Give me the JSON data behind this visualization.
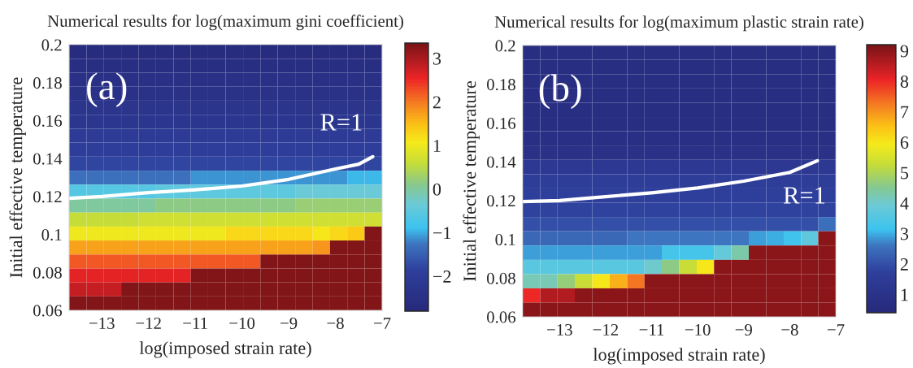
{
  "chart_data": [
    {
      "type": "heatmap",
      "title": "Numerical results for log(maximum gini coefficient)",
      "xlabel": "log(imposed strain rate)",
      "ylabel": "Initial effective temperature",
      "x": [
        -13.51,
        -13.14,
        -12.77,
        -12.4,
        -12.03,
        -11.65,
        -11.28,
        -10.91,
        -10.54,
        -10.16,
        -9.79,
        -9.42,
        -9.05,
        -8.67,
        -8.3,
        -7.93,
        -7.56,
        -7.19
      ],
      "y": [
        0.1963,
        0.1889,
        0.1815,
        0.1742,
        0.1668,
        0.1594,
        0.1521,
        0.1447,
        0.1373,
        0.1299,
        0.1226,
        0.1152,
        0.1078,
        0.1005,
        0.0931,
        0.0857,
        0.0784,
        0.071,
        0.0637
      ],
      "cells": [
        [
          -2.65,
          -2.65,
          -2.65,
          -2.65,
          -2.65,
          -2.65,
          -2.65,
          -2.65,
          -2.65,
          -2.65,
          -2.65,
          -2.65,
          -2.65,
          -2.65,
          -2.65,
          -2.65,
          -2.65,
          -2.65
        ],
        [
          -2.6,
          -2.6,
          -2.6,
          -2.6,
          -2.6,
          -2.6,
          -2.6,
          -2.6,
          -2.6,
          -2.6,
          -2.6,
          -2.6,
          -2.6,
          -2.6,
          -2.6,
          -2.6,
          -2.6,
          -2.6
        ],
        [
          -2.5,
          -2.5,
          -2.5,
          -2.5,
          -2.5,
          -2.5,
          -2.5,
          -2.5,
          -2.5,
          -2.5,
          -2.5,
          -2.5,
          -2.5,
          -2.5,
          -2.5,
          -2.5,
          -2.5,
          -2.5
        ],
        [
          -2.4,
          -2.4,
          -2.4,
          -2.4,
          -2.4,
          -2.4,
          -2.4,
          -2.4,
          -2.4,
          -2.4,
          -2.4,
          -2.4,
          -2.4,
          -2.4,
          -2.4,
          -2.4,
          -2.4,
          -2.4
        ],
        [
          -2.3,
          -2.3,
          -2.3,
          -2.3,
          -2.3,
          -2.3,
          -2.3,
          -2.3,
          -2.3,
          -2.3,
          -2.3,
          -2.3,
          -2.3,
          -2.3,
          -2.3,
          -2.3,
          -2.3,
          -2.3
        ],
        [
          -2.2,
          -2.2,
          -2.2,
          -2.2,
          -2.2,
          -2.2,
          -2.2,
          -2.2,
          -2.2,
          -2.2,
          -2.2,
          -2.2,
          -2.2,
          -2.2,
          -2.2,
          -2.2,
          -2.2,
          -2.2
        ],
        [
          -2.05,
          -2.05,
          -2.05,
          -2.05,
          -2.05,
          -2.05,
          -2.05,
          -2.05,
          -2.05,
          -2.05,
          -2.05,
          -2.05,
          -2.05,
          -2.05,
          -2.05,
          -2.05,
          -2.05,
          -2.05
        ],
        [
          -1.95,
          -1.95,
          -1.95,
          -1.95,
          -1.95,
          -1.95,
          -1.95,
          -1.95,
          -1.95,
          -1.95,
          -1.95,
          -1.95,
          -1.95,
          -1.95,
          -1.95,
          -1.95,
          -1.95,
          -1.95
        ],
        [
          -1.8,
          -1.8,
          -1.8,
          -1.8,
          -1.8,
          -1.8,
          -1.8,
          -1.8,
          -1.8,
          -1.8,
          -1.8,
          -1.8,
          -1.8,
          -1.8,
          -1.8,
          -1.8,
          -1.8,
          -1.8
        ],
        [
          -1.3,
          -1.3,
          -1.3,
          -1.3,
          -1.3,
          -1.3,
          -1.3,
          -1.1,
          -1.1,
          -1.1,
          -1.1,
          -1.1,
          -1.1,
          -1.1,
          -1.1,
          -1.1,
          -0.95,
          -0.95
        ],
        [
          -0.6,
          -0.6,
          -0.6,
          -0.6,
          -0.6,
          -0.5,
          -0.5,
          -0.5,
          -0.5,
          -0.5,
          -0.5,
          -0.5,
          -0.5,
          -0.35,
          -0.35,
          -0.35,
          -0.35,
          -0.35
        ],
        [
          0.0,
          0.0,
          0.0,
          0.0,
          0.0,
          0.15,
          0.15,
          0.15,
          0.15,
          0.15,
          0.15,
          0.15,
          0.15,
          0.25,
          0.25,
          0.25,
          0.25,
          0.25
        ],
        [
          0.6,
          0.6,
          0.6,
          0.6,
          0.7,
          0.7,
          0.7,
          0.7,
          0.7,
          0.7,
          0.7,
          0.7,
          0.7,
          0.7,
          0.7,
          0.7,
          0.7,
          0.7
        ],
        [
          1.0,
          1.0,
          1.0,
          1.0,
          1.0,
          1.0,
          1.0,
          1.0,
          1.0,
          1.25,
          1.25,
          1.25,
          1.25,
          1.25,
          1.1,
          1.25,
          1.4,
          3.3
        ],
        [
          1.7,
          1.7,
          1.7,
          1.7,
          1.7,
          1.7,
          1.7,
          1.7,
          1.7,
          1.7,
          1.7,
          1.7,
          1.7,
          1.7,
          1.8,
          3.3,
          3.3,
          3.3
        ],
        [
          2.2,
          2.2,
          2.2,
          2.2,
          2.2,
          2.2,
          2.2,
          2.2,
          2.2,
          2.2,
          2.2,
          3.3,
          3.3,
          3.3,
          3.3,
          3.3,
          3.3,
          3.3
        ],
        [
          2.6,
          2.6,
          2.6,
          2.6,
          2.6,
          2.6,
          2.6,
          3.3,
          3.3,
          3.3,
          3.3,
          3.3,
          3.3,
          3.3,
          3.3,
          3.3,
          3.3,
          3.3
        ],
        [
          2.8,
          2.8,
          2.8,
          3.3,
          3.3,
          3.3,
          3.3,
          3.3,
          3.3,
          3.3,
          3.3,
          3.3,
          3.3,
          3.3,
          3.3,
          3.3,
          3.3,
          3.3
        ],
        [
          3.3,
          3.3,
          3.3,
          3.3,
          3.3,
          3.3,
          3.3,
          3.3,
          3.3,
          3.3,
          3.3,
          3.3,
          3.3,
          3.3,
          3.3,
          3.3,
          3.3,
          3.3
        ]
      ],
      "clim": [
        -2.8,
        3.35
      ],
      "cticks": [
        {
          "value": -2,
          "label": "−2"
        },
        {
          "value": -1,
          "label": "−1"
        },
        0,
        1,
        2,
        3
      ],
      "xlim": [
        -13.7,
        -7
      ],
      "ylim": [
        0.06,
        0.2
      ],
      "xticks": [
        {
          "value": -13,
          "label": "−13"
        },
        {
          "value": -12,
          "label": "−12"
        },
        {
          "value": -11,
          "label": "−11"
        },
        {
          "value": -10,
          "label": "−10"
        },
        {
          "value": -9,
          "label": "−9"
        },
        {
          "value": -8,
          "label": "−8"
        },
        {
          "value": -7,
          "label": "−7"
        }
      ],
      "yticks": [
        0.06,
        0.08,
        0.1,
        0.12,
        0.14,
        0.16,
        0.18,
        0.2
      ],
      "series": [
        {
          "type": "line",
          "color": "#ffffff",
          "x": [
            -13.7,
            -13,
            -12,
            -11,
            -10,
            -9,
            -8,
            -7.5,
            -7.2
          ],
          "values": [
            0.119,
            0.12,
            0.122,
            0.1235,
            0.1255,
            0.129,
            0.1345,
            0.137,
            0.141
          ]
        }
      ],
      "annotations": [
        "(a)",
        "R=1"
      ]
    },
    {
      "type": "heatmap",
      "title": "Numerical results for log(maximum plastic strain rate)",
      "xlabel": "log(imposed strain rate)",
      "ylabel": "Initial effective temperature",
      "x": [
        -13.61,
        -13.23,
        -12.86,
        -12.48,
        -12.1,
        -11.72,
        -11.34,
        -10.97,
        -10.59,
        -10.21,
        -9.83,
        -9.46,
        -9.08,
        -8.7,
        -8.32,
        -7.94,
        -7.57,
        -7.19
      ],
      "y": [
        0.1963,
        0.1889,
        0.1815,
        0.1742,
        0.1668,
        0.1594,
        0.1521,
        0.1447,
        0.1373,
        0.1299,
        0.1226,
        0.1152,
        0.1078,
        0.1005,
        0.0931,
        0.0857,
        0.0784,
        0.071,
        0.0637
      ],
      "cells": [
        [
          0.7,
          0.7,
          0.7,
          0.7,
          0.7,
          0.7,
          0.7,
          0.7,
          0.7,
          0.7,
          0.7,
          0.7,
          0.7,
          0.7,
          0.7,
          0.7,
          0.7,
          0.7
        ],
        [
          0.7,
          0.7,
          0.7,
          0.7,
          0.7,
          0.7,
          0.7,
          0.7,
          0.7,
          0.7,
          0.7,
          0.7,
          0.7,
          0.7,
          0.7,
          0.7,
          0.7,
          0.7
        ],
        [
          0.7,
          0.7,
          0.7,
          0.7,
          0.7,
          0.7,
          0.7,
          0.7,
          0.7,
          0.7,
          0.7,
          0.7,
          0.7,
          0.7,
          0.7,
          0.7,
          0.7,
          0.7
        ],
        [
          0.7,
          0.7,
          0.7,
          0.7,
          0.7,
          0.7,
          0.7,
          0.7,
          0.7,
          0.7,
          0.7,
          0.7,
          0.7,
          0.7,
          0.7,
          0.7,
          0.7,
          0.7
        ],
        [
          0.7,
          0.7,
          0.7,
          0.7,
          0.7,
          0.7,
          0.7,
          0.7,
          0.7,
          0.7,
          0.7,
          0.7,
          0.7,
          0.7,
          0.7,
          0.7,
          0.7,
          0.7
        ],
        [
          0.7,
          0.7,
          0.7,
          0.7,
          0.7,
          0.7,
          0.7,
          0.7,
          0.7,
          0.7,
          0.7,
          0.7,
          0.7,
          0.7,
          0.7,
          0.7,
          0.7,
          0.7
        ],
        [
          0.8,
          0.8,
          0.8,
          0.8,
          0.8,
          0.8,
          0.8,
          0.8,
          0.8,
          0.8,
          0.8,
          0.8,
          0.8,
          0.8,
          0.8,
          0.8,
          0.8,
          0.8
        ],
        [
          0.9,
          0.9,
          0.9,
          0.9,
          0.9,
          0.9,
          0.9,
          0.9,
          0.9,
          0.9,
          0.9,
          0.9,
          0.9,
          0.9,
          0.9,
          0.9,
          0.9,
          0.9
        ],
        [
          1.3,
          1.3,
          1.3,
          1.3,
          1.3,
          1.3,
          1.3,
          1.3,
          1.3,
          1.3,
          1.3,
          1.3,
          1.3,
          1.3,
          1.3,
          1.3,
          1.3,
          1.3
        ],
        [
          1.6,
          1.6,
          1.6,
          1.6,
          1.6,
          1.6,
          1.6,
          1.6,
          1.6,
          1.6,
          1.6,
          1.6,
          1.6,
          1.6,
          1.6,
          1.6,
          1.6,
          1.6
        ],
        [
          1.7,
          1.7,
          1.7,
          1.7,
          1.7,
          1.7,
          1.7,
          1.7,
          1.7,
          1.7,
          1.7,
          1.7,
          1.7,
          1.7,
          1.7,
          1.7,
          1.7,
          1.7
        ],
        [
          1.8,
          1.8,
          1.8,
          1.8,
          1.8,
          1.8,
          1.8,
          1.8,
          1.8,
          1.8,
          1.8,
          1.8,
          1.8,
          1.8,
          1.8,
          1.8,
          1.8,
          1.8
        ],
        [
          2.0,
          2.0,
          2.0,
          2.0,
          2.0,
          2.0,
          2.0,
          2.0,
          2.0,
          2.0,
          2.0,
          2.0,
          2.0,
          2.0,
          2.0,
          2.0,
          2.0,
          2.5
        ],
        [
          2.4,
          2.4,
          2.4,
          2.4,
          2.4,
          2.4,
          2.6,
          2.6,
          2.6,
          2.6,
          2.6,
          2.6,
          2.6,
          2.9,
          3.0,
          3.2,
          3.7,
          9.0
        ],
        [
          2.9,
          2.9,
          2.9,
          2.9,
          2.9,
          2.9,
          2.9,
          2.9,
          3.3,
          3.3,
          3.3,
          3.8,
          4.3,
          9.0,
          9.0,
          9.0,
          9.0,
          9.0
        ],
        [
          3.6,
          3.6,
          3.6,
          3.6,
          3.6,
          3.6,
          3.6,
          4.0,
          4.6,
          5.3,
          6.0,
          9.0,
          9.0,
          9.0,
          9.0,
          9.0,
          9.0,
          9.0
        ],
        [
          4.2,
          4.2,
          4.7,
          5.3,
          6.0,
          6.7,
          7.3,
          9.0,
          9.0,
          9.0,
          9.0,
          9.0,
          9.0,
          9.0,
          9.0,
          9.0,
          9.0,
          9.0
        ],
        [
          8.0,
          8.6,
          8.6,
          9.0,
          9.0,
          9.0,
          9.0,
          9.0,
          9.0,
          9.0,
          9.0,
          9.0,
          9.0,
          9.0,
          9.0,
          9.0,
          9.0,
          9.0
        ],
        [
          9.0,
          9.0,
          9.0,
          9.0,
          9.0,
          9.0,
          9.0,
          9.0,
          9.0,
          9.0,
          9.0,
          9.0,
          9.0,
          9.0,
          9.0,
          9.0,
          9.0,
          9.0
        ]
      ],
      "clim": [
        0.4,
        9.2
      ],
      "cticks": [
        1,
        2,
        3,
        4,
        5,
        6,
        7,
        8,
        9
      ],
      "xlim": [
        -13.8,
        -7
      ],
      "ylim": [
        0.06,
        0.2
      ],
      "xticks": [
        {
          "value": -13,
          "label": "−13"
        },
        {
          "value": -12,
          "label": "−12"
        },
        {
          "value": -11,
          "label": "−11"
        },
        {
          "value": -10,
          "label": "−10"
        },
        {
          "value": -9,
          "label": "−9"
        },
        {
          "value": -8,
          "label": "−8"
        },
        {
          "value": -7,
          "label": "−7"
        }
      ],
      "yticks": [
        0.06,
        0.08,
        0.1,
        0.12,
        0.14,
        0.16,
        0.18,
        0.2
      ],
      "series": [
        {
          "type": "line",
          "color": "#ffffff",
          "x": [
            -13.8,
            -13,
            -12,
            -11,
            -10,
            -9,
            -8,
            -7.4
          ],
          "values": [
            0.1195,
            0.12,
            0.122,
            0.124,
            0.1265,
            0.13,
            0.1345,
            0.1405
          ]
        }
      ],
      "annotations": [
        "(b)",
        "R=1"
      ]
    }
  ]
}
